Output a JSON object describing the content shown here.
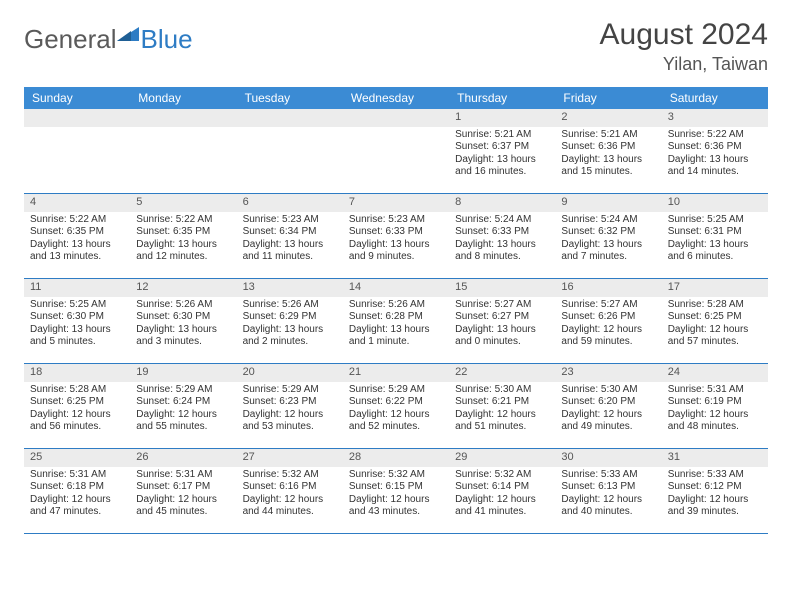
{
  "logo": {
    "general": "General",
    "blue": "Blue"
  },
  "title": "August 2024",
  "location": "Yilan, Taiwan",
  "weekdays": [
    "Sunday",
    "Monday",
    "Tuesday",
    "Wednesday",
    "Thursday",
    "Friday",
    "Saturday"
  ],
  "colors": {
    "header_bg": "#3b8bd4",
    "row_border": "#2e7cc4",
    "daybar_bg": "#ececec",
    "logo_gray": "#5a5a5a",
    "logo_blue": "#2e7cc4"
  },
  "weeks": [
    [
      null,
      null,
      null,
      null,
      {
        "n": "1",
        "sr": "Sunrise: 5:21 AM",
        "ss": "Sunset: 6:37 PM",
        "dl1": "Daylight: 13 hours",
        "dl2": "and 16 minutes."
      },
      {
        "n": "2",
        "sr": "Sunrise: 5:21 AM",
        "ss": "Sunset: 6:36 PM",
        "dl1": "Daylight: 13 hours",
        "dl2": "and 15 minutes."
      },
      {
        "n": "3",
        "sr": "Sunrise: 5:22 AM",
        "ss": "Sunset: 6:36 PM",
        "dl1": "Daylight: 13 hours",
        "dl2": "and 14 minutes."
      }
    ],
    [
      {
        "n": "4",
        "sr": "Sunrise: 5:22 AM",
        "ss": "Sunset: 6:35 PM",
        "dl1": "Daylight: 13 hours",
        "dl2": "and 13 minutes."
      },
      {
        "n": "5",
        "sr": "Sunrise: 5:22 AM",
        "ss": "Sunset: 6:35 PM",
        "dl1": "Daylight: 13 hours",
        "dl2": "and 12 minutes."
      },
      {
        "n": "6",
        "sr": "Sunrise: 5:23 AM",
        "ss": "Sunset: 6:34 PM",
        "dl1": "Daylight: 13 hours",
        "dl2": "and 11 minutes."
      },
      {
        "n": "7",
        "sr": "Sunrise: 5:23 AM",
        "ss": "Sunset: 6:33 PM",
        "dl1": "Daylight: 13 hours",
        "dl2": "and 9 minutes."
      },
      {
        "n": "8",
        "sr": "Sunrise: 5:24 AM",
        "ss": "Sunset: 6:33 PM",
        "dl1": "Daylight: 13 hours",
        "dl2": "and 8 minutes."
      },
      {
        "n": "9",
        "sr": "Sunrise: 5:24 AM",
        "ss": "Sunset: 6:32 PM",
        "dl1": "Daylight: 13 hours",
        "dl2": "and 7 minutes."
      },
      {
        "n": "10",
        "sr": "Sunrise: 5:25 AM",
        "ss": "Sunset: 6:31 PM",
        "dl1": "Daylight: 13 hours",
        "dl2": "and 6 minutes."
      }
    ],
    [
      {
        "n": "11",
        "sr": "Sunrise: 5:25 AM",
        "ss": "Sunset: 6:30 PM",
        "dl1": "Daylight: 13 hours",
        "dl2": "and 5 minutes."
      },
      {
        "n": "12",
        "sr": "Sunrise: 5:26 AM",
        "ss": "Sunset: 6:30 PM",
        "dl1": "Daylight: 13 hours",
        "dl2": "and 3 minutes."
      },
      {
        "n": "13",
        "sr": "Sunrise: 5:26 AM",
        "ss": "Sunset: 6:29 PM",
        "dl1": "Daylight: 13 hours",
        "dl2": "and 2 minutes."
      },
      {
        "n": "14",
        "sr": "Sunrise: 5:26 AM",
        "ss": "Sunset: 6:28 PM",
        "dl1": "Daylight: 13 hours",
        "dl2": "and 1 minute."
      },
      {
        "n": "15",
        "sr": "Sunrise: 5:27 AM",
        "ss": "Sunset: 6:27 PM",
        "dl1": "Daylight: 13 hours",
        "dl2": "and 0 minutes."
      },
      {
        "n": "16",
        "sr": "Sunrise: 5:27 AM",
        "ss": "Sunset: 6:26 PM",
        "dl1": "Daylight: 12 hours",
        "dl2": "and 59 minutes."
      },
      {
        "n": "17",
        "sr": "Sunrise: 5:28 AM",
        "ss": "Sunset: 6:25 PM",
        "dl1": "Daylight: 12 hours",
        "dl2": "and 57 minutes."
      }
    ],
    [
      {
        "n": "18",
        "sr": "Sunrise: 5:28 AM",
        "ss": "Sunset: 6:25 PM",
        "dl1": "Daylight: 12 hours",
        "dl2": "and 56 minutes."
      },
      {
        "n": "19",
        "sr": "Sunrise: 5:29 AM",
        "ss": "Sunset: 6:24 PM",
        "dl1": "Daylight: 12 hours",
        "dl2": "and 55 minutes."
      },
      {
        "n": "20",
        "sr": "Sunrise: 5:29 AM",
        "ss": "Sunset: 6:23 PM",
        "dl1": "Daylight: 12 hours",
        "dl2": "and 53 minutes."
      },
      {
        "n": "21",
        "sr": "Sunrise: 5:29 AM",
        "ss": "Sunset: 6:22 PM",
        "dl1": "Daylight: 12 hours",
        "dl2": "and 52 minutes."
      },
      {
        "n": "22",
        "sr": "Sunrise: 5:30 AM",
        "ss": "Sunset: 6:21 PM",
        "dl1": "Daylight: 12 hours",
        "dl2": "and 51 minutes."
      },
      {
        "n": "23",
        "sr": "Sunrise: 5:30 AM",
        "ss": "Sunset: 6:20 PM",
        "dl1": "Daylight: 12 hours",
        "dl2": "and 49 minutes."
      },
      {
        "n": "24",
        "sr": "Sunrise: 5:31 AM",
        "ss": "Sunset: 6:19 PM",
        "dl1": "Daylight: 12 hours",
        "dl2": "and 48 minutes."
      }
    ],
    [
      {
        "n": "25",
        "sr": "Sunrise: 5:31 AM",
        "ss": "Sunset: 6:18 PM",
        "dl1": "Daylight: 12 hours",
        "dl2": "and 47 minutes."
      },
      {
        "n": "26",
        "sr": "Sunrise: 5:31 AM",
        "ss": "Sunset: 6:17 PM",
        "dl1": "Daylight: 12 hours",
        "dl2": "and 45 minutes."
      },
      {
        "n": "27",
        "sr": "Sunrise: 5:32 AM",
        "ss": "Sunset: 6:16 PM",
        "dl1": "Daylight: 12 hours",
        "dl2": "and 44 minutes."
      },
      {
        "n": "28",
        "sr": "Sunrise: 5:32 AM",
        "ss": "Sunset: 6:15 PM",
        "dl1": "Daylight: 12 hours",
        "dl2": "and 43 minutes."
      },
      {
        "n": "29",
        "sr": "Sunrise: 5:32 AM",
        "ss": "Sunset: 6:14 PM",
        "dl1": "Daylight: 12 hours",
        "dl2": "and 41 minutes."
      },
      {
        "n": "30",
        "sr": "Sunrise: 5:33 AM",
        "ss": "Sunset: 6:13 PM",
        "dl1": "Daylight: 12 hours",
        "dl2": "and 40 minutes."
      },
      {
        "n": "31",
        "sr": "Sunrise: 5:33 AM",
        "ss": "Sunset: 6:12 PM",
        "dl1": "Daylight: 12 hours",
        "dl2": "and 39 minutes."
      }
    ]
  ]
}
